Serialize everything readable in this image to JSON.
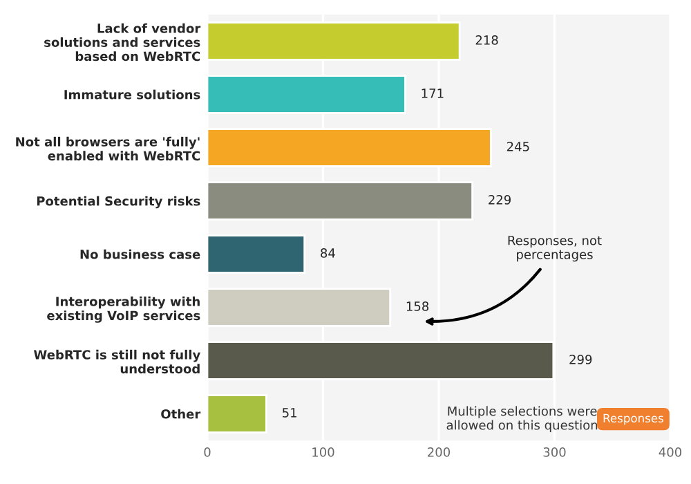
{
  "chart_data": {
    "type": "bar",
    "orientation": "horizontal",
    "categories": [
      "Lack of vendor\nsolutions and services\nbased on WebRTC",
      "Immature solutions",
      "Not all browsers are 'fully'\nenabled with WebRTC",
      "Potential Security risks",
      "No business case",
      "Interoperability with\nexisting VoIP services",
      "WebRTC is still not fully\nunderstood",
      "Other"
    ],
    "values": [
      218,
      171,
      245,
      229,
      84,
      158,
      299,
      51
    ],
    "colors": [
      "#c5cd2e",
      "#36bdb8",
      "#f5a623",
      "#8a8c7f",
      "#2e6571",
      "#cfcdbf",
      "#5a5a4c",
      "#a8c040"
    ],
    "xlim": [
      0,
      400
    ],
    "xticks": [
      0,
      100,
      200,
      300,
      400
    ],
    "grid": "x",
    "data_labels": true,
    "annotations": [
      "Responses, not\npercentages",
      "Multiple selections were\nallowed on this question",
      "Responses"
    ]
  }
}
